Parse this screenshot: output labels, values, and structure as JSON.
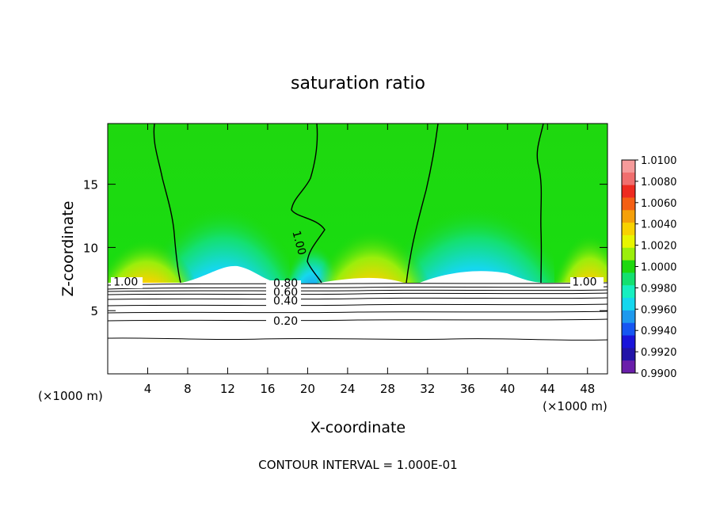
{
  "chart_data": {
    "type": "heatmap",
    "title": "saturation ratio",
    "xlabel": "X-coordinate",
    "ylabel": "Z-coordinate",
    "x_unit_left": "(×1000 m)",
    "x_unit_right": "(×1000 m)",
    "xlim": [
      0,
      50
    ],
    "ylim": [
      0,
      19.8
    ],
    "x_ticks": [
      4,
      8,
      12,
      16,
      20,
      24,
      28,
      32,
      36,
      40,
      44,
      48
    ],
    "y_ticks": [
      5,
      10,
      15
    ],
    "colorbar": {
      "labels": [
        "1.0100",
        "1.0080",
        "1.0060",
        "1.0040",
        "1.0020",
        "1.0000",
        "0.9980",
        "0.9960",
        "0.9940",
        "0.9920",
        "0.9900"
      ],
      "colors": [
        "#f59a9a",
        "#f06e6e",
        "#ee2a20",
        "#f45f14",
        "#f5a00a",
        "#f8d200",
        "#e8f500",
        "#9bee0b",
        "#1fd80f",
        "#14e070",
        "#17efc0",
        "#15d7ee",
        "#1e99ee",
        "#1656f2",
        "#1a14da",
        "#2214a8",
        "#6a1eaa"
      ]
    },
    "contour_interval": "CONTOUR INTERVAL = 1.000E-01",
    "contour_labels": [
      {
        "text": "1.00",
        "x": 1.8,
        "z": 7.3
      },
      {
        "text": "1.00",
        "x": 47.7,
        "z": 7.3
      },
      {
        "text": "1.00",
        "x": 18.8,
        "z": 10.6
      },
      {
        "text": "0.80",
        "x": 17.8,
        "z": 7.2
      },
      {
        "text": "0.60",
        "x": 17.8,
        "z": 6.5
      },
      {
        "text": "0.40",
        "x": 17.8,
        "z": 5.8
      },
      {
        "text": "0.20",
        "x": 17.8,
        "z": 4.2
      }
    ]
  }
}
